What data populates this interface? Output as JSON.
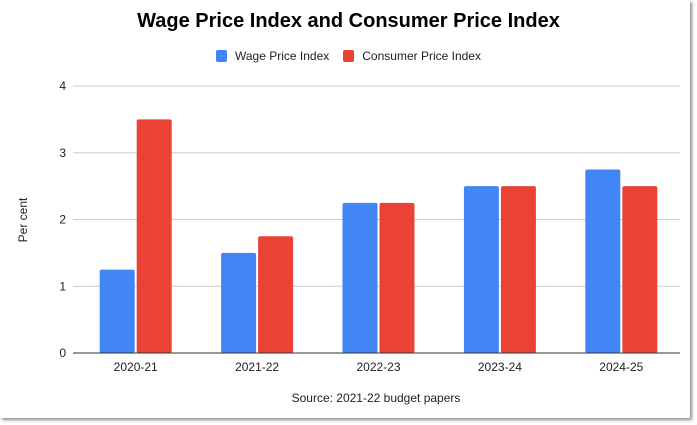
{
  "chart_data": {
    "type": "bar",
    "title": "Wage Price Index and Consumer Price Index",
    "xlabel": "Source: 2021-22 budget papers",
    "ylabel": "Per cent",
    "categories": [
      "2020-21",
      "2021-22",
      "2022-23",
      "2023-24",
      "2024-25"
    ],
    "series": [
      {
        "name": "Wage Price Index",
        "color": "#4285f4",
        "values": [
          1.25,
          1.5,
          2.25,
          2.5,
          2.75
        ]
      },
      {
        "name": "Consumer Price Index",
        "color": "#ea4335",
        "values": [
          3.5,
          1.75,
          2.25,
          2.5,
          2.5
        ]
      }
    ],
    "ylim": [
      0,
      4
    ],
    "yticks": [
      0,
      1,
      2,
      3,
      4
    ],
    "grid": true,
    "legend_position": "top-center"
  }
}
